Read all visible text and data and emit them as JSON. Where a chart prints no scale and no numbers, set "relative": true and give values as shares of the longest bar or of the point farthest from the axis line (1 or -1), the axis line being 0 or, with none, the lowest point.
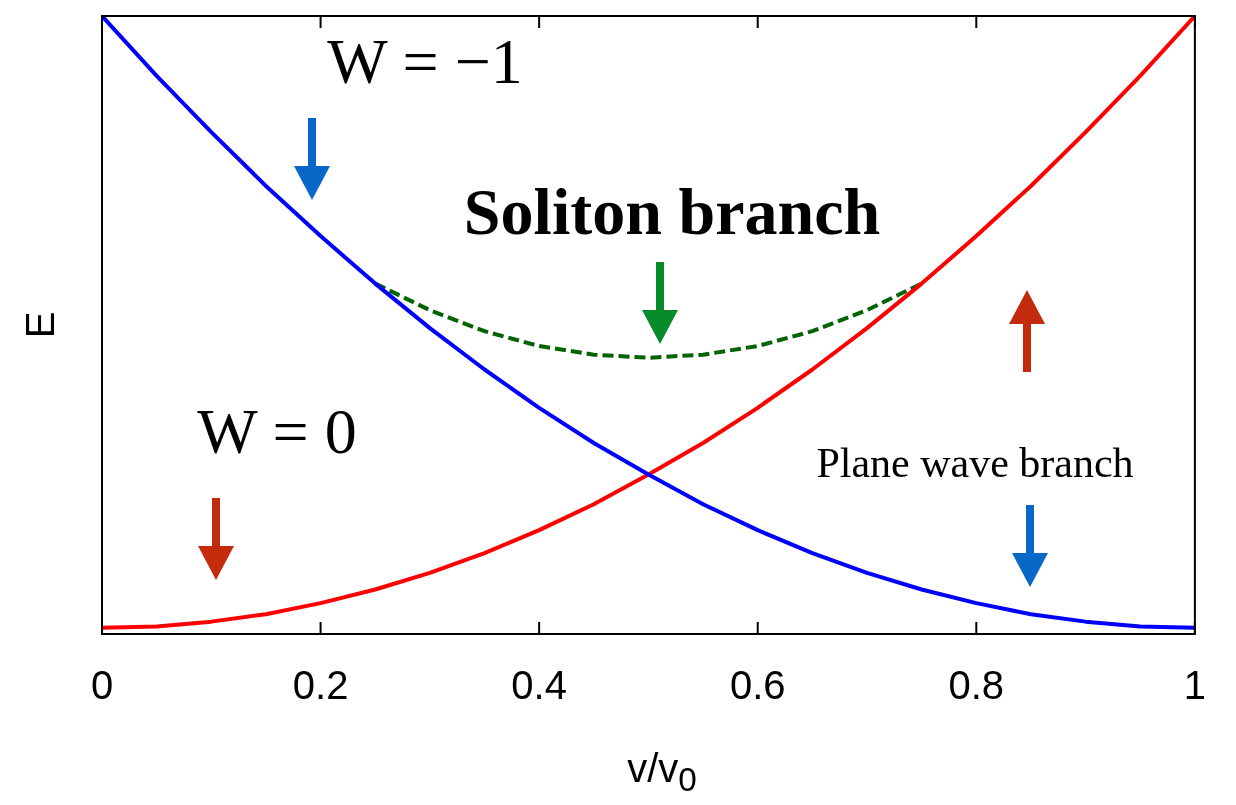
{
  "chart_data": {
    "type": "line",
    "xlabel": "v/v$_{0}$",
    "ylabel": "E",
    "relative": true,
    "xlim": [
      0,
      1
    ],
    "xticks": [
      0,
      0.2,
      0.4,
      0.6,
      0.8,
      1
    ],
    "grid": false,
    "legend": false,
    "marker": "none",
    "x": [
      0,
      0.05,
      0.1,
      0.15,
      0.2,
      0.25,
      0.3,
      0.35,
      0.4,
      0.45,
      0.5,
      0.55,
      0.6,
      0.65,
      0.7,
      0.75,
      0.8,
      0.85,
      0.9,
      0.95,
      1
    ],
    "series": [
      {
        "color": "#0000ff",
        "line_style": "solid",
        "values": [
          1.0,
          0.903,
          0.812,
          0.725,
          0.644,
          0.567,
          0.495,
          0.428,
          0.366,
          0.309,
          0.258,
          0.21,
          0.168,
          0.131,
          0.099,
          0.072,
          0.05,
          0.032,
          0.02,
          0.012,
          0.01
        ]
      },
      {
        "color": "#ff0000",
        "line_style": "solid",
        "values": [
          0.01,
          0.012,
          0.02,
          0.032,
          0.05,
          0.072,
          0.099,
          0.131,
          0.168,
          0.21,
          0.258,
          0.309,
          0.366,
          0.428,
          0.495,
          0.567,
          0.644,
          0.725,
          0.812,
          0.903,
          1.0
        ]
      },
      {
        "color": "#006400",
        "line_style": "dashed",
        "x": [
          0.25,
          0.3,
          0.35,
          0.4,
          0.45,
          0.5,
          0.55,
          0.6,
          0.65,
          0.7,
          0.75
        ],
        "values": [
          0.567,
          0.524,
          0.49,
          0.466,
          0.452,
          0.447,
          0.452,
          0.466,
          0.49,
          0.524,
          0.567
        ]
      }
    ],
    "annotations": [
      "W = −1",
      "Soliton branch",
      "W = 0",
      "Plane wave branch"
    ]
  }
}
